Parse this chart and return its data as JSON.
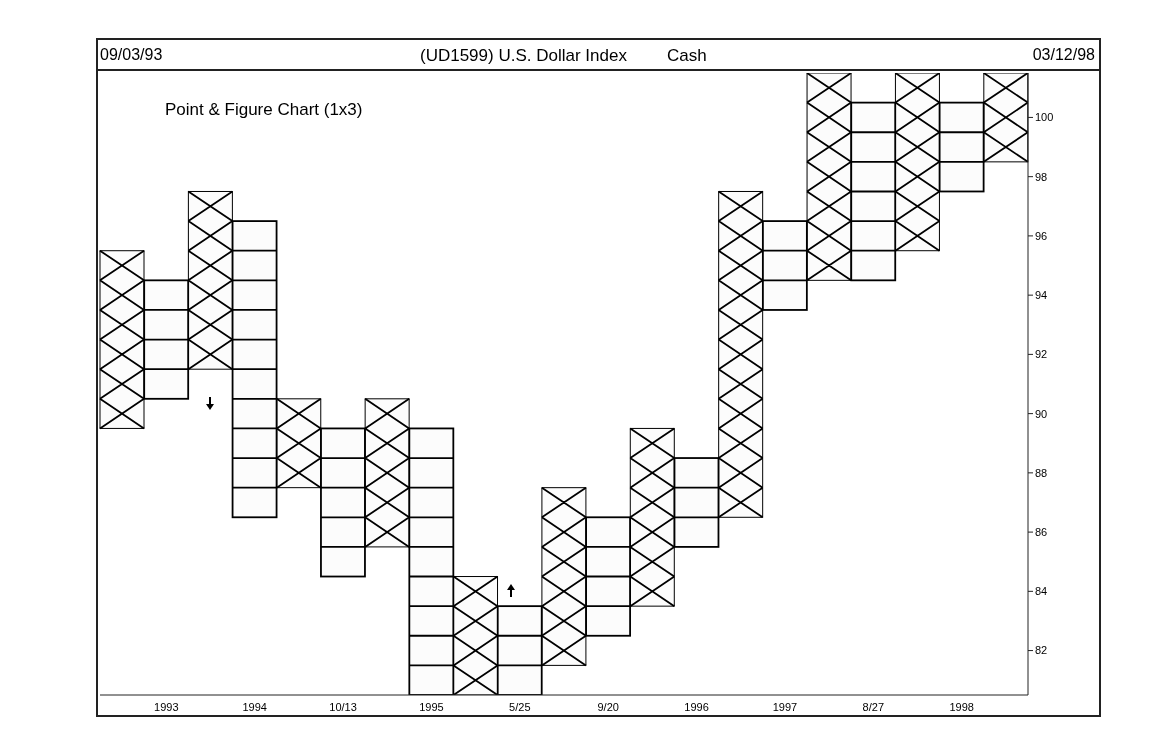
{
  "chart_data": {
    "type": "bar",
    "title": "(UD1599) U.S. Dollar Index",
    "subtitle": "Cash",
    "annotations": [
      "09/03/93",
      {
        "text": "03/12/98"
      },
      "Point & Figure Chart (1x3)"
    ],
    "categories": [
      null,
      "1993",
      null,
      "1994",
      null,
      "10/13",
      null,
      "1995",
      null,
      "5/25",
      null,
      "9/20",
      null,
      "1996",
      null,
      "1997",
      null,
      "8/27",
      null,
      "1998",
      null
    ],
    "series": [
      {
        "color": "#000000",
        "marker": "cross",
        "base": [
          89.5,
          null,
          91.5,
          null,
          87.5,
          null,
          85.5,
          null,
          80.5,
          null,
          81.5,
          null,
          83.5,
          null,
          86.5,
          null,
          94.5,
          null,
          95.5,
          null,
          98.5
        ],
        "values": [
          6,
          null,
          6,
          null,
          3,
          null,
          5,
          null,
          4,
          null,
          6,
          null,
          6,
          null,
          11,
          null,
          7,
          null,
          6,
          null,
          3
        ]
      },
      {
        "color": "#000000",
        "marker": "square",
        "base": [
          null,
          90.5,
          null,
          86.5,
          null,
          84.5,
          null,
          80.5,
          null,
          80.5,
          null,
          82.5,
          null,
          85.5,
          null,
          93.5,
          null,
          94.5,
          null,
          97.5,
          null
        ],
        "values": [
          null,
          4,
          null,
          10,
          null,
          5,
          null,
          9,
          null,
          3,
          null,
          4,
          null,
          3,
          null,
          3,
          null,
          6,
          null,
          3,
          null
        ]
      }
    ],
    "ylim": [
      80.5,
      101.5
    ],
    "yticks": [
      82,
      84,
      86,
      88,
      90,
      92,
      94,
      96,
      98,
      100
    ]
  }
}
